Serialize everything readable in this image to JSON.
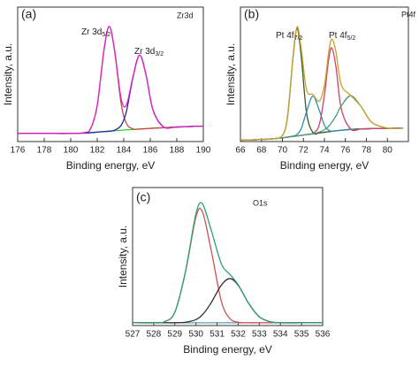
{
  "chart_data": [
    {
      "type": "line",
      "panel_label": "(a)",
      "title": "Zr3d",
      "xlabel": "Binding energy, eV",
      "ylabel": "Intensity, a.u.",
      "x": [
        176,
        178,
        180,
        181,
        181.5,
        182,
        182.5,
        182.9,
        183.3,
        183.8,
        184.2,
        184.7,
        185.2,
        185.7,
        186.2,
        187,
        188,
        190
      ],
      "series": [
        {
          "color": "#30d030",
          "values": [
            6,
            6,
            6,
            6.3,
            6.6,
            7,
            7.4,
            7.7,
            8,
            8.4,
            8.7,
            9,
            9.3,
            9.6,
            9.9,
            10.3,
            10.8,
            11.5
          ]
        },
        {
          "color": "#c84848",
          "values": [
            6,
            6,
            6,
            6.5,
            9.6,
            27,
            67.4,
            85.7,
            68,
            28.4,
            13.5,
            9.4,
            9.3,
            9.6,
            9.9,
            10.3,
            10.8,
            11.5
          ]
        },
        {
          "color": "#1a2a9a",
          "values": [
            6,
            6,
            6,
            6.3,
            6.6,
            7,
            7.4,
            7.7,
            8.4,
            12,
            22.4,
            48,
            64.3,
            48.6,
            23.6,
            10.9,
            10.8,
            11.5
          ]
        },
        {
          "color": "#e020c8",
          "values": [
            6,
            6,
            6,
            6.5,
            9.6,
            27,
            67.4,
            85.7,
            68.4,
            32,
            27.2,
            48.4,
            64.3,
            48.6,
            23.6,
            10.9,
            10.8,
            11.5
          ]
        }
      ],
      "xlim": [
        176,
        190
      ],
      "xticks": [
        176,
        178,
        180,
        182,
        184,
        186,
        188,
        190
      ],
      "ylim": [
        0,
        100
      ],
      "annotations": [
        {
          "text": "Zr 3d",
          "sub": "5/2"
        },
        {
          "text": "Zr 3d",
          "sub": "3/2"
        }
      ]
    },
    {
      "type": "line",
      "panel_label": "(b)",
      "title": "Pt4f",
      "xlabel": "Binding energy, eV",
      "ylabel": "Intensity, a.u.",
      "x": [
        66,
        68,
        69,
        70,
        70.5,
        71,
        71.4,
        71.8,
        72.3,
        72.9,
        73.5,
        74,
        74.4,
        74.7,
        75.1,
        75.6,
        76.5,
        77.5,
        78.5,
        80,
        81.5
      ],
      "series": [
        {
          "color": "#9070c0",
          "values": [
            1,
            1.5,
            2,
            2.8,
            3.3,
            3.8,
            4.2,
            4.6,
            5.2,
            5.8,
            6.4,
            6.9,
            7.3,
            7.6,
            8,
            8.4,
            9,
            9.4,
            9.6,
            9.8,
            10
          ]
        },
        {
          "color": "#3a5a20",
          "values": [
            1,
            1.5,
            2,
            4.4,
            19.3,
            61.8,
            84.2,
            62.6,
            21.2,
            6.7,
            6.4,
            6.9,
            7.3,
            7.6,
            8,
            8.4,
            9,
            9.4,
            9.6,
            9.8,
            10
          ]
        },
        {
          "color": "#3090b0",
          "values": [
            1,
            1.5,
            2,
            2.8,
            3.3,
            4,
            5.4,
            9.8,
            22.2,
            33.8,
            23.4,
            12.1,
            8.5,
            7.6,
            8,
            8.4,
            9,
            9.4,
            9.6,
            9.8,
            10
          ]
        },
        {
          "color": "#d04060",
          "values": [
            1,
            1.5,
            2,
            2.8,
            3.3,
            3.8,
            4.2,
            4.6,
            5.2,
            6.1,
            12.2,
            34.5,
            60.7,
            69.6,
            55.6,
            24.6,
            9.3,
            9.4,
            9.6,
            9.8,
            10
          ]
        },
        {
          "color": "#40a070",
          "values": [
            1,
            1.5,
            2,
            2.8,
            3.3,
            3.8,
            4.2,
            4.6,
            5.2,
            5.8,
            7,
            8.8,
            11.3,
            14.2,
            19,
            26.4,
            34,
            26,
            14.4,
            10,
            10
          ]
        },
        {
          "color": "#c8a030",
          "values": [
            1,
            1.5,
            2,
            4.4,
            19.3,
            62,
            85.4,
            68.4,
            38.4,
            35,
            30,
            41.6,
            65.9,
            76.2,
            66.6,
            42.4,
            34.3,
            26,
            14.4,
            10,
            10
          ]
        }
      ],
      "xlim": [
        66,
        82
      ],
      "xticks": [
        66,
        68,
        70,
        72,
        74,
        76,
        78,
        80
      ],
      "ylim": [
        0,
        100
      ],
      "annotations": [
        {
          "text": "Pt 4f",
          "sub": "7/2"
        },
        {
          "text": "Pt 4f",
          "sub": "5/2"
        }
      ]
    },
    {
      "type": "line",
      "panel_label": "(c)",
      "title": "O1s",
      "xlabel": "Binding energy, eV",
      "ylabel": "Intensity, a.u.",
      "x": [
        527,
        528,
        528.5,
        529,
        529.5,
        530,
        530.3,
        530.7,
        531.2,
        531.6,
        532,
        532.5,
        533,
        533.5,
        534,
        535,
        536
      ],
      "series": [
        {
          "color": "#5a9ab0",
          "values": [
            2,
            2,
            2,
            2,
            2,
            2,
            2,
            2,
            2,
            2,
            2,
            2,
            2,
            2,
            2,
            2,
            2
          ]
        },
        {
          "color": "#d05050",
          "values": [
            2,
            2,
            2.7,
            9.6,
            38.5,
            78.7,
            82.6,
            56.3,
            17.7,
            5.2,
            2.4,
            2,
            2,
            2,
            2,
            2,
            2
          ]
        },
        {
          "color": "#303030",
          "values": [
            2,
            2,
            2,
            2,
            2.4,
            4.3,
            7.7,
            16,
            29.2,
            34,
            29.2,
            16,
            6.3,
            2.8,
            2,
            2,
            2
          ]
        },
        {
          "color": "#30a070",
          "values": [
            2,
            2,
            2.7,
            9.6,
            38.9,
            81,
            88.3,
            70.3,
            44.9,
            37.2,
            29.6,
            16,
            6.3,
            2.8,
            2,
            2,
            2
          ]
        }
      ],
      "xlim": [
        527,
        536
      ],
      "xticks": [
        527,
        528,
        529,
        530,
        531,
        532,
        533,
        534,
        535,
        536
      ],
      "ylim": [
        0,
        100
      ],
      "annotations": []
    }
  ]
}
